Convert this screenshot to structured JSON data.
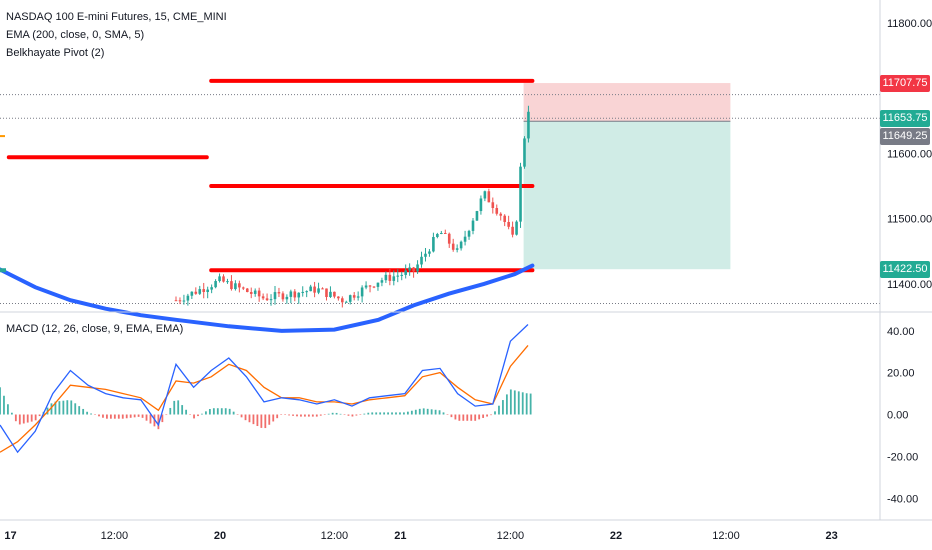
{
  "legend": {
    "symbol": "NASDAQ 100 E-mini Futures, 15, CME_MINI",
    "ema": "EMA (200, close, 0, SMA, 5)",
    "pivot": "Belkhayate Pivot (2)",
    "macd": "MACD (12, 26, close, 9, EMA, EMA)"
  },
  "badges": [
    {
      "label": "11707.75",
      "color": "#f23645",
      "value": 11707.75
    },
    {
      "label": "11653.75",
      "color": "#22ab94",
      "value": 11653.75
    },
    {
      "label": "11649.25",
      "color": "#787b86",
      "value": 11649.25
    },
    {
      "label": "11422.50",
      "color": "#22ab94",
      "value": 11422.5
    }
  ],
  "chart_data": [
    {
      "type": "candlestick",
      "title": "NASDAQ 100 E-mini Futures, 15, CME_MINI",
      "price_ticks": [
        "11800.00",
        "11600.00",
        "11500.00",
        "11400.00"
      ],
      "price_tick_values": [
        11800,
        11600,
        11500,
        11400
      ],
      "x_ticks": [
        "17",
        "12:00",
        "20",
        "12:00",
        "21",
        "12:00",
        "22",
        "12:00",
        "23"
      ],
      "x_tick_bold": [
        true,
        false,
        true,
        false,
        true,
        false,
        true,
        false,
        true
      ],
      "pivot_levels": [
        {
          "value": 11711,
          "from": 0.24,
          "to": 0.605
        },
        {
          "value": 11594,
          "from": 0.01,
          "to": 0.235
        },
        {
          "value": 11550,
          "from": 0.24,
          "to": 0.605
        },
        {
          "value": 11421,
          "from": 0.24,
          "to": 0.605
        }
      ],
      "ema_200": [
        [
          0.0,
          11422
        ],
        [
          0.04,
          11395
        ],
        [
          0.08,
          11375
        ],
        [
          0.12,
          11362
        ],
        [
          0.16,
          11352
        ],
        [
          0.2,
          11345
        ],
        [
          0.26,
          11335
        ],
        [
          0.32,
          11328
        ],
        [
          0.38,
          11330
        ],
        [
          0.43,
          11345
        ],
        [
          0.47,
          11367
        ],
        [
          0.51,
          11385
        ],
        [
          0.55,
          11400
        ],
        [
          0.585,
          11415
        ],
        [
          0.605,
          11428
        ]
      ],
      "position": {
        "stop": 11707.75,
        "entry": 11649.25,
        "target": 11422.5,
        "from": 0.595,
        "to": 0.83
      },
      "price_range": [
        11360,
        11835
      ]
    },
    {
      "type": "macd",
      "title": "MACD (12, 26, close, 9, EMA, EMA)",
      "y_ticks": [
        "40.00",
        "20.00",
        "0.00",
        "-20.00",
        "-40.00"
      ],
      "y_tick_values": [
        40,
        20,
        0,
        -20,
        -40
      ],
      "y_range": [
        -48,
        48
      ],
      "macd_line": [
        [
          0.0,
          -5
        ],
        [
          0.02,
          -18
        ],
        [
          0.04,
          -8
        ],
        [
          0.06,
          10
        ],
        [
          0.08,
          21
        ],
        [
          0.1,
          14
        ],
        [
          0.12,
          10
        ],
        [
          0.14,
          8
        ],
        [
          0.16,
          7
        ],
        [
          0.18,
          -5
        ],
        [
          0.2,
          24
        ],
        [
          0.22,
          13
        ],
        [
          0.24,
          21
        ],
        [
          0.26,
          27
        ],
        [
          0.28,
          18
        ],
        [
          0.3,
          6
        ],
        [
          0.32,
          8
        ],
        [
          0.34,
          7
        ],
        [
          0.36,
          5
        ],
        [
          0.38,
          7
        ],
        [
          0.4,
          4
        ],
        [
          0.42,
          8
        ],
        [
          0.44,
          9
        ],
        [
          0.46,
          10
        ],
        [
          0.48,
          21
        ],
        [
          0.5,
          22
        ],
        [
          0.52,
          10
        ],
        [
          0.54,
          4
        ],
        [
          0.56,
          5
        ],
        [
          0.58,
          35
        ],
        [
          0.6,
          43
        ]
      ],
      "signal_line": [
        [
          0.0,
          -18
        ],
        [
          0.02,
          -13
        ],
        [
          0.04,
          -5
        ],
        [
          0.06,
          4
        ],
        [
          0.08,
          14
        ],
        [
          0.1,
          13
        ],
        [
          0.12,
          12
        ],
        [
          0.14,
          10
        ],
        [
          0.16,
          8
        ],
        [
          0.18,
          2
        ],
        [
          0.2,
          16
        ],
        [
          0.22,
          15
        ],
        [
          0.24,
          18
        ],
        [
          0.26,
          24
        ],
        [
          0.28,
          21
        ],
        [
          0.3,
          13
        ],
        [
          0.32,
          8
        ],
        [
          0.34,
          8
        ],
        [
          0.36,
          6
        ],
        [
          0.38,
          6
        ],
        [
          0.4,
          5
        ],
        [
          0.42,
          7
        ],
        [
          0.44,
          8
        ],
        [
          0.46,
          9
        ],
        [
          0.48,
          18
        ],
        [
          0.5,
          20
        ],
        [
          0.52,
          13
        ],
        [
          0.54,
          7
        ],
        [
          0.56,
          5
        ],
        [
          0.58,
          23
        ],
        [
          0.6,
          33
        ]
      ]
    }
  ],
  "colors": {
    "up": "#26a69a",
    "down": "#ef5350",
    "pivot": "#ff0000",
    "ema": "#2962ff",
    "macd": "#2962ff",
    "signal": "#ff6d00",
    "hist_up": "#26a69a",
    "hist_down": "#ef5350",
    "risk": "#f7c5c7",
    "reward": "#c8e9e2"
  }
}
